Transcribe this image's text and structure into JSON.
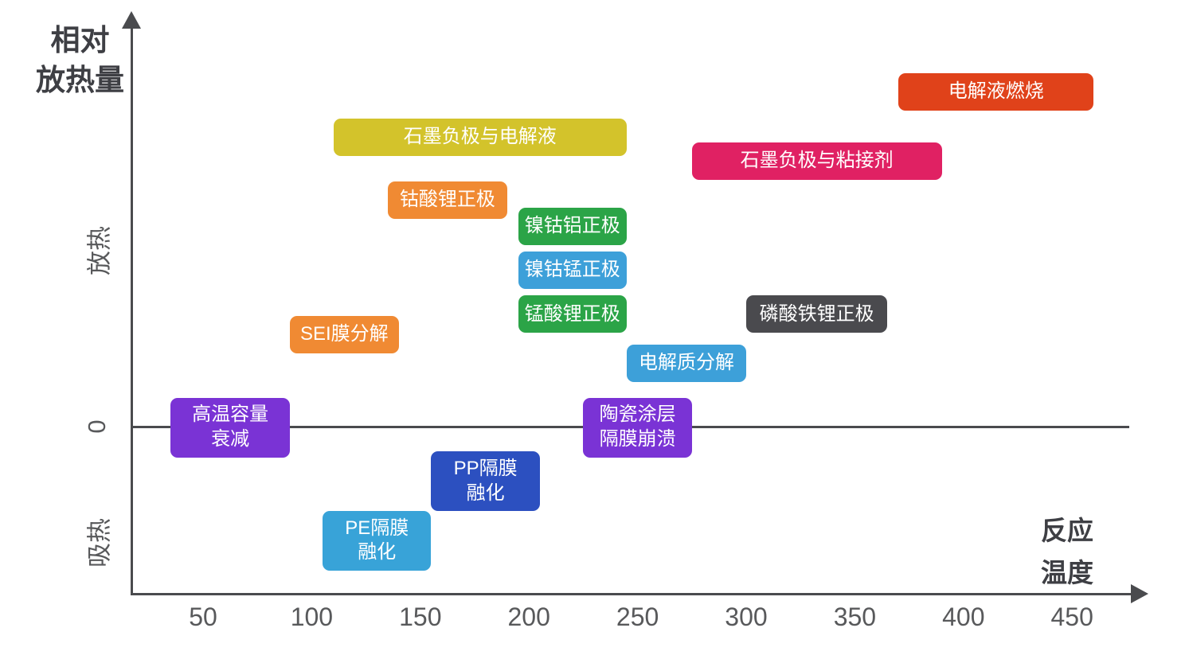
{
  "axes": {
    "y_title_line1": "相对",
    "y_title_line2": "放热量",
    "x_title_line1": "反应",
    "x_title_line2": "温度",
    "y_label_positive": "放热",
    "y_label_zero": "0",
    "y_label_negative": "吸热",
    "axis_color": "#4a4b4e",
    "tick_color": "#58595b",
    "title_color": "#3e3f44"
  },
  "chart_data": {
    "type": "bar",
    "variant": "horizontal temperature-range blocks on a qualitative relative-heat axis",
    "title": "",
    "xlabel": "反应温度",
    "ylabel": "相对放热量",
    "x_unit": "°C (implied)",
    "xlim": [
      0,
      475
    ],
    "x_ticks": [
      50,
      100,
      150,
      200,
      250,
      300,
      350,
      400,
      450
    ],
    "y_qualitative_labels": [
      "吸热",
      "0",
      "放热"
    ],
    "grid": false,
    "legend": false,
    "blocks": [
      {
        "label": "电解液燃烧",
        "lines": [
          "电解液燃烧"
        ],
        "temp_range": [
          370,
          460
        ],
        "heat_level": 96.5,
        "heat": "exothermic",
        "color": "#e0421a"
      },
      {
        "label": "石墨负极与电解液",
        "lines": [
          "石墨负极与电解液"
        ],
        "temp_range": [
          110,
          245
        ],
        "heat_level": 83.5,
        "heat": "exothermic",
        "color": "#d3c32b"
      },
      {
        "label": "石墨负极与粘接剂",
        "lines": [
          "石墨负极与粘接剂"
        ],
        "temp_range": [
          275,
          390
        ],
        "heat_level": 76.5,
        "heat": "exothermic",
        "color": "#e02163"
      },
      {
        "label": "钴酸锂正极",
        "lines": [
          "钴酸锂正极"
        ],
        "temp_range": [
          135,
          190
        ],
        "heat_level": 65.3,
        "heat": "exothermic",
        "color": "#f08a33"
      },
      {
        "label": "镍钴铝正极",
        "lines": [
          "镍钴铝正极"
        ],
        "temp_range": [
          195,
          245
        ],
        "heat_level": 57.8,
        "heat": "exothermic",
        "color": "#2ba447"
      },
      {
        "label": "镍钴锰正极",
        "lines": [
          "镍钴锰正极"
        ],
        "temp_range": [
          195,
          245
        ],
        "heat_level": 45.2,
        "heat": "exothermic",
        "color": "#3da0d9"
      },
      {
        "label": "锰酸锂正极",
        "lines": [
          "锰酸锂正极"
        ],
        "temp_range": [
          195,
          245
        ],
        "heat_level": 32.5,
        "heat": "exothermic",
        "color": "#2ba447"
      },
      {
        "label": "磷酸铁锂正极",
        "lines": [
          "磷酸铁锂正极"
        ],
        "temp_range": [
          300,
          365
        ],
        "heat_level": 32.5,
        "heat": "exothermic",
        "color": "#4a4a4e"
      },
      {
        "label": "SEI膜分解",
        "lines": [
          "SEI膜分解"
        ],
        "temp_range": [
          90,
          140
        ],
        "heat_level": 26.7,
        "heat": "exothermic",
        "color": "#f08a33"
      },
      {
        "label": "电解质分解",
        "lines": [
          "电解质分解"
        ],
        "temp_range": [
          245,
          300
        ],
        "heat_level": 18.4,
        "heat": "exothermic",
        "color": "#3da0d9"
      },
      {
        "label": "高温容量衰减",
        "lines": [
          "高温容量",
          "衰减"
        ],
        "temp_range": [
          35,
          90
        ],
        "heat_level": 0,
        "heat": "near-zero",
        "color": "#7a33d5"
      },
      {
        "label": "陶瓷涂层隔膜崩溃",
        "lines": [
          "陶瓷涂层",
          "隔膜崩溃"
        ],
        "temp_range": [
          225,
          275
        ],
        "heat_level": 0,
        "heat": "near-zero",
        "color": "#7a33d5"
      },
      {
        "label": "PP隔膜融化",
        "lines": [
          "PP隔膜",
          "融化"
        ],
        "temp_range": [
          155,
          205
        ],
        "heat_level": -15.5,
        "heat": "endothermic",
        "color": "#2c50c0"
      },
      {
        "label": "PE隔膜融化",
        "lines": [
          "PE隔膜",
          "融化"
        ],
        "temp_range": [
          105,
          155
        ],
        "heat_level": -32.6,
        "heat": "endothermic",
        "color": "#38a3d8"
      }
    ]
  }
}
